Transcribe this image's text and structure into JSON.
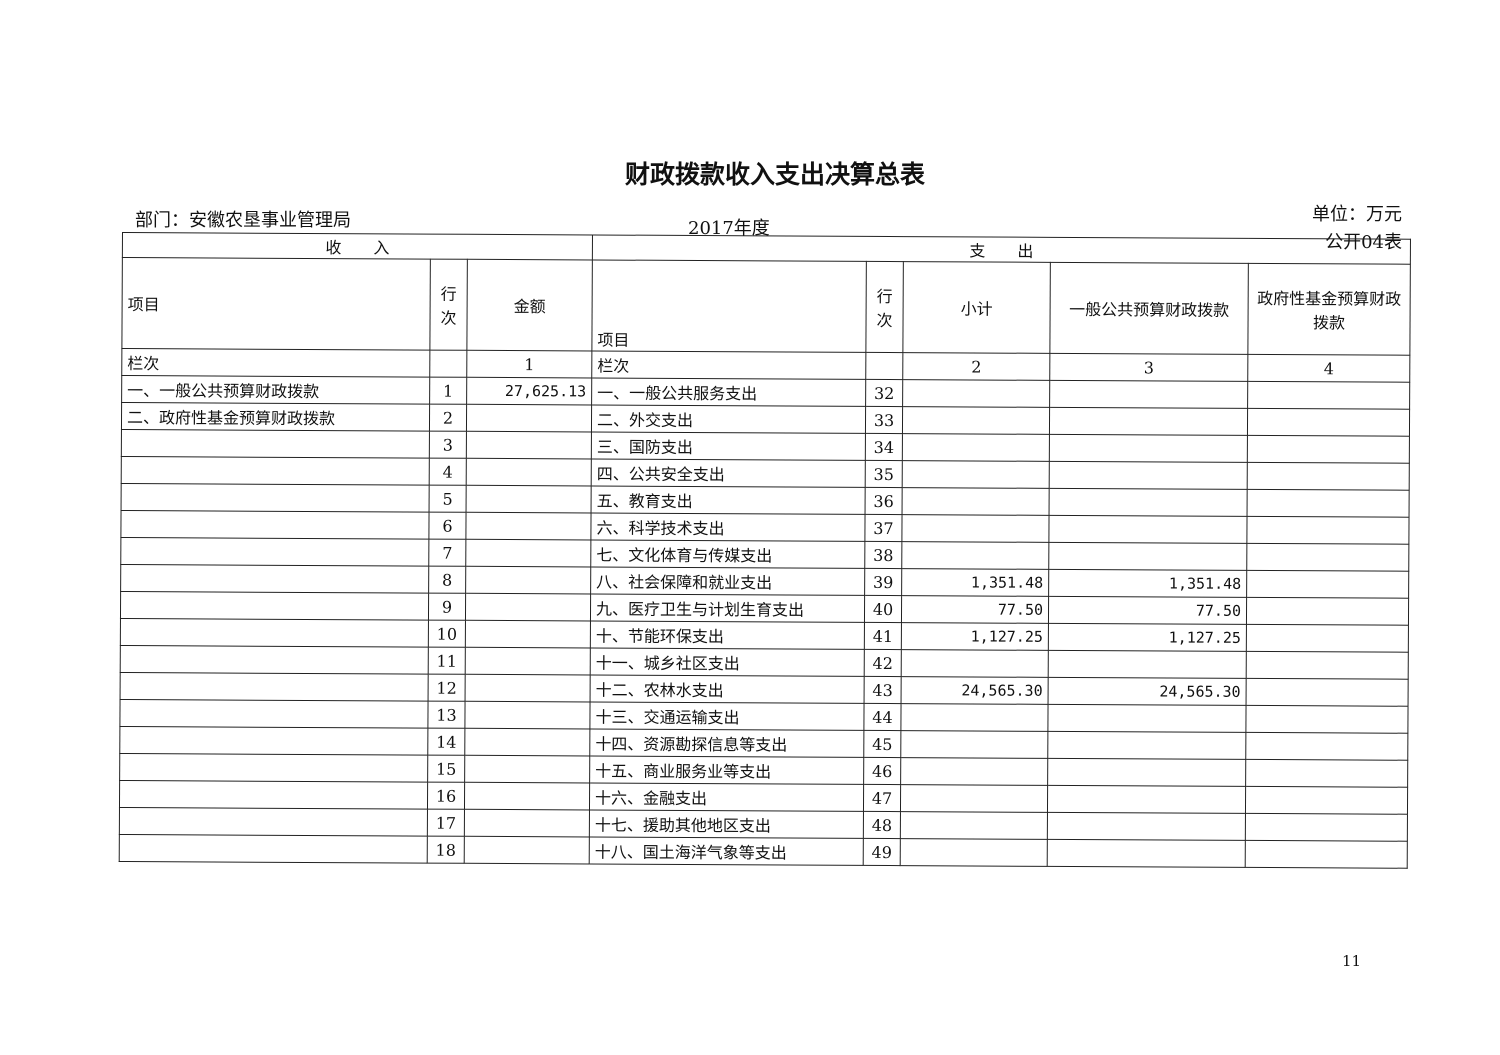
{
  "title": "财政拨款收入支出决算总表",
  "department": "部门：安徽农垦事业管理局",
  "year": "2017年度",
  "unit": "单位：万元",
  "form_no": "公开04表",
  "page_number": "11",
  "headers": {
    "income": "收　　入",
    "expense": "支　　出",
    "item": "项目",
    "line": "行次",
    "amount": "金额",
    "subtotal": "小计",
    "general": "一般公共预算财政拨款",
    "fund": "政府性基金预算财政拨款",
    "col_label": "栏次",
    "col1": "1",
    "col2": "2",
    "col3": "3",
    "col4": "4"
  },
  "rows": [
    {
      "in_item": "一、一般公共预算财政拨款",
      "in_line": "1",
      "in_amount": "27,625.13",
      "ex_item": "一、一般公共服务支出",
      "ex_line": "32",
      "subtotal": "",
      "general": "",
      "fund": ""
    },
    {
      "in_item": "二、政府性基金预算财政拨款",
      "in_line": "2",
      "in_amount": "",
      "ex_item": "二、外交支出",
      "ex_line": "33",
      "subtotal": "",
      "general": "",
      "fund": ""
    },
    {
      "in_item": "",
      "in_line": "3",
      "in_amount": "",
      "ex_item": "三、国防支出",
      "ex_line": "34",
      "subtotal": "",
      "general": "",
      "fund": ""
    },
    {
      "in_item": "",
      "in_line": "4",
      "in_amount": "",
      "ex_item": "四、公共安全支出",
      "ex_line": "35",
      "subtotal": "",
      "general": "",
      "fund": ""
    },
    {
      "in_item": "",
      "in_line": "5",
      "in_amount": "",
      "ex_item": "五、教育支出",
      "ex_line": "36",
      "subtotal": "",
      "general": "",
      "fund": ""
    },
    {
      "in_item": "",
      "in_line": "6",
      "in_amount": "",
      "ex_item": "六、科学技术支出",
      "ex_line": "37",
      "subtotal": "",
      "general": "",
      "fund": ""
    },
    {
      "in_item": "",
      "in_line": "7",
      "in_amount": "",
      "ex_item": "七、文化体育与传媒支出",
      "ex_line": "38",
      "subtotal": "",
      "general": "",
      "fund": ""
    },
    {
      "in_item": "",
      "in_line": "8",
      "in_amount": "",
      "ex_item": "八、社会保障和就业支出",
      "ex_line": "39",
      "subtotal": "1,351.48",
      "general": "1,351.48",
      "fund": ""
    },
    {
      "in_item": "",
      "in_line": "9",
      "in_amount": "",
      "ex_item": "九、医疗卫生与计划生育支出",
      "ex_line": "40",
      "subtotal": "77.50",
      "general": "77.50",
      "fund": ""
    },
    {
      "in_item": "",
      "in_line": "10",
      "in_amount": "",
      "ex_item": "十、节能环保支出",
      "ex_line": "41",
      "subtotal": "1,127.25",
      "general": "1,127.25",
      "fund": ""
    },
    {
      "in_item": "",
      "in_line": "11",
      "in_amount": "",
      "ex_item": "十一、城乡社区支出",
      "ex_line": "42",
      "subtotal": "",
      "general": "",
      "fund": ""
    },
    {
      "in_item": "",
      "in_line": "12",
      "in_amount": "",
      "ex_item": "十二、农林水支出",
      "ex_line": "43",
      "subtotal": "24,565.30",
      "general": "24,565.30",
      "fund": ""
    },
    {
      "in_item": "",
      "in_line": "13",
      "in_amount": "",
      "ex_item": "十三、交通运输支出",
      "ex_line": "44",
      "subtotal": "",
      "general": "",
      "fund": ""
    },
    {
      "in_item": "",
      "in_line": "14",
      "in_amount": "",
      "ex_item": "十四、资源勘探信息等支出",
      "ex_line": "45",
      "subtotal": "",
      "general": "",
      "fund": ""
    },
    {
      "in_item": "",
      "in_line": "15",
      "in_amount": "",
      "ex_item": "十五、商业服务业等支出",
      "ex_line": "46",
      "subtotal": "",
      "general": "",
      "fund": ""
    },
    {
      "in_item": "",
      "in_line": "16",
      "in_amount": "",
      "ex_item": "十六、金融支出",
      "ex_line": "47",
      "subtotal": "",
      "general": "",
      "fund": ""
    },
    {
      "in_item": "",
      "in_line": "17",
      "in_amount": "",
      "ex_item": "十七、援助其他地区支出",
      "ex_line": "48",
      "subtotal": "",
      "general": "",
      "fund": ""
    },
    {
      "in_item": "",
      "in_line": "18",
      "in_amount": "",
      "ex_item": "十八、国土海洋气象等支出",
      "ex_line": "49",
      "subtotal": "",
      "general": "",
      "fund": ""
    }
  ]
}
